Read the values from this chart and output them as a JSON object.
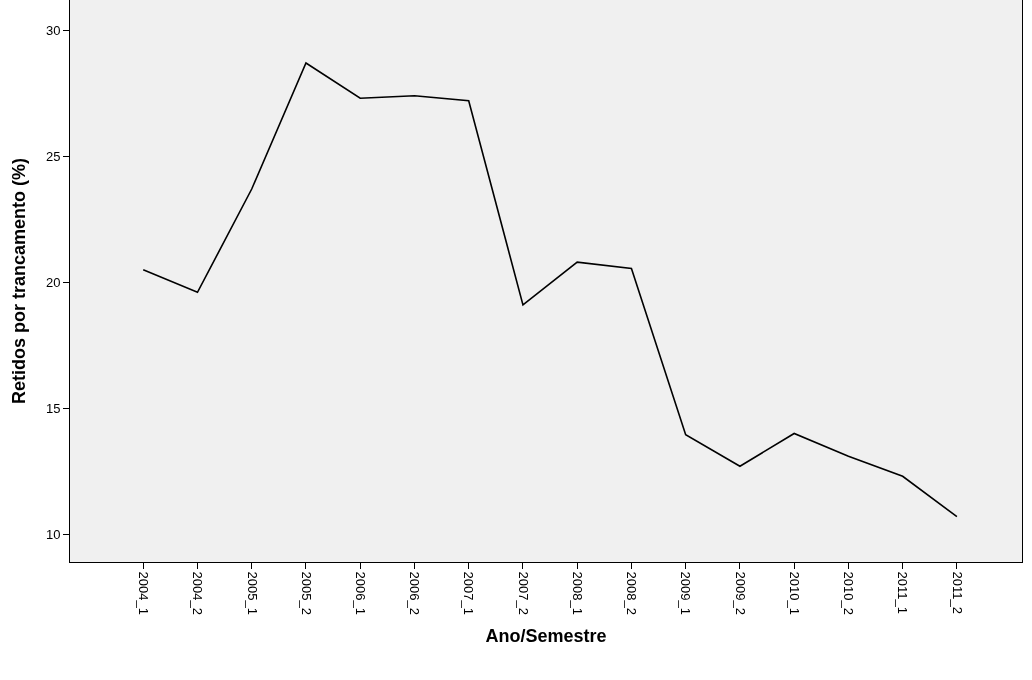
{
  "chart_data": {
    "type": "line",
    "xlabel": "Ano/Semestre",
    "ylabel": "Retidos por trancamento (%)",
    "categories": [
      "2004_1",
      "2004_2",
      "2005_1",
      "2005_2",
      "2006_1",
      "2006_2",
      "2007_1",
      "2007_2",
      "2008_1",
      "2008_2",
      "2009_1",
      "2009_2",
      "2010_1",
      "2010_2",
      "2011_1",
      "2011_2"
    ],
    "series": [
      {
        "color": "#000000",
        "values": [
          20.5,
          19.6,
          23.7,
          28.7,
          27.3,
          27.4,
          27.2,
          19.1,
          20.8,
          20.55,
          13.95,
          12.7,
          14.0,
          13.1,
          12.3,
          10.7
        ]
      }
    ],
    "ylim": [
      8.9,
      31.2
    ],
    "yticks": [
      10,
      15,
      20,
      25,
      30
    ],
    "grid": false,
    "marker": "none",
    "line_style": "solid"
  }
}
